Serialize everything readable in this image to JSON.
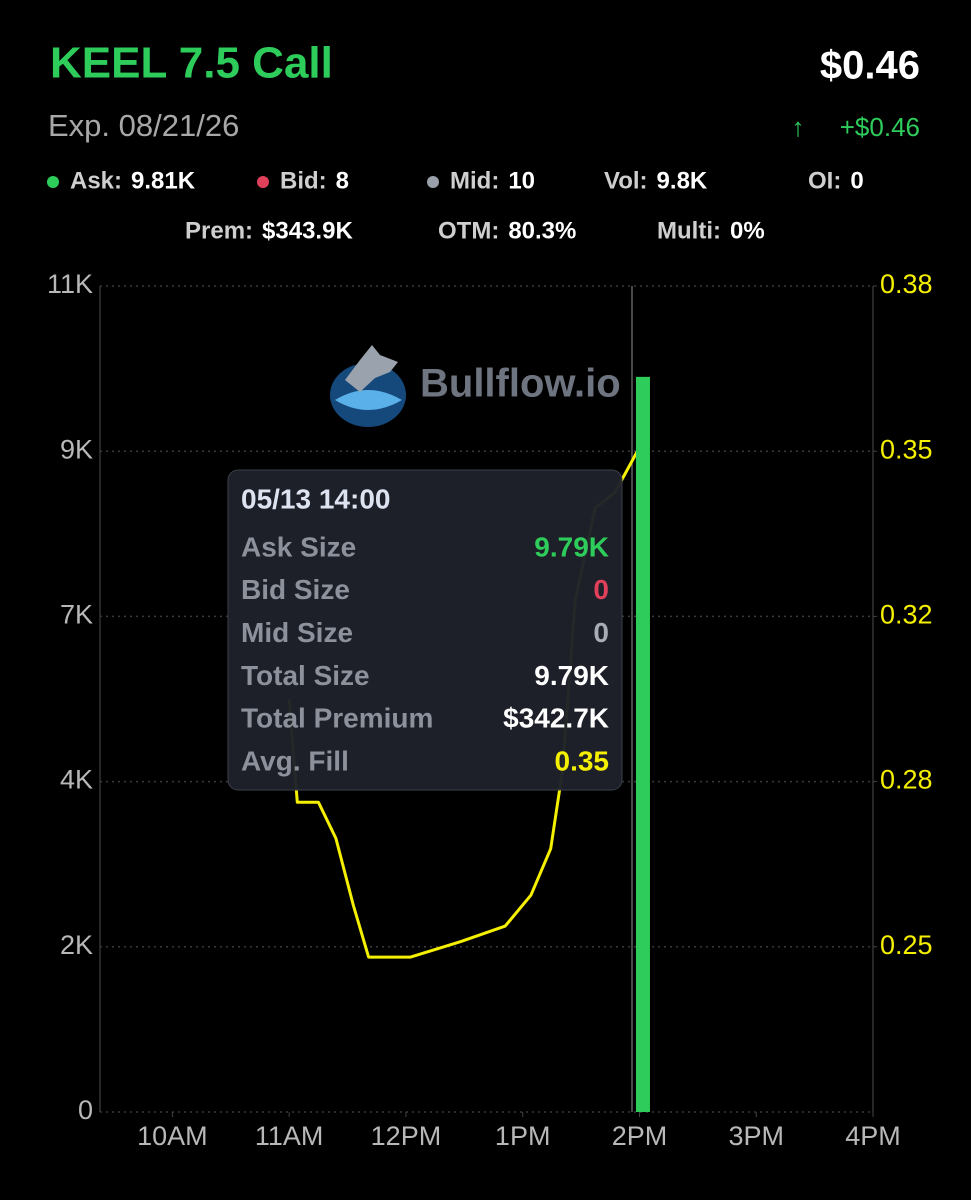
{
  "header": {
    "title": "KEEL 7.5 Call",
    "price": "$0.46",
    "expiry": "Exp. 08/21/26",
    "change": "+$0.46"
  },
  "stats": [
    {
      "label": "Ask:",
      "value": "9.81K"
    },
    {
      "label": "Bid:",
      "value": "8"
    },
    {
      "label": "Mid:",
      "value": "10"
    },
    {
      "label": "Vol:",
      "value": "9.8K"
    },
    {
      "label": "OI:",
      "value": "0"
    },
    {
      "label": "Prem:",
      "value": "$343.9K"
    },
    {
      "label": "OTM:",
      "value": "80.3%"
    },
    {
      "label": "Multi:",
      "value": "0%"
    }
  ],
  "watermark": "Bullflow.io",
  "tooltip": {
    "time": "05/13 14:00",
    "rows": [
      {
        "label": "Ask Size",
        "value": "9.79K"
      },
      {
        "label": "Bid Size",
        "value": "0"
      },
      {
        "label": "Mid Size",
        "value": "0"
      },
      {
        "label": "Total Size",
        "value": "9.79K"
      },
      {
        "label": "Total Premium",
        "value": "$342.7K"
      },
      {
        "label": "Avg. Fill",
        "value": "0.35"
      }
    ]
  },
  "chart_data": {
    "type": "bar",
    "xlim": [
      9.38,
      16
    ],
    "xticks": [
      {
        "value": 10,
        "label": "10AM"
      },
      {
        "value": 11,
        "label": "11AM"
      },
      {
        "value": 12,
        "label": "12PM"
      },
      {
        "value": 13,
        "label": "1PM"
      },
      {
        "value": 14,
        "label": "2PM"
      },
      {
        "value": 15,
        "label": "3PM"
      },
      {
        "value": 16,
        "label": "4PM"
      }
    ],
    "ylim": [
      0,
      11000
    ],
    "yticks": [
      0,
      {
        "value": 2200,
        "label": "2K"
      },
      {
        "value": 4400,
        "label": "4K"
      },
      {
        "value": 6600,
        "label": "7K"
      },
      {
        "value": 8800,
        "label": "9K"
      },
      {
        "value": 11000,
        "label": "11K"
      }
    ],
    "y2lim": [
      0.22,
      0.38
    ],
    "y2ticks": [
      {
        "value": 0.252,
        "label": "0.25"
      },
      {
        "value": 0.284,
        "label": "0.28"
      },
      {
        "value": 0.316,
        "label": "0.32"
      },
      {
        "value": 0.348,
        "label": "0.35"
      },
      0.38
    ],
    "grid": true,
    "series": [
      {
        "type": "bar",
        "color": "#2ecc5a",
        "x": [
          14.03
        ],
        "values": [
          9790
        ]
      },
      {
        "type": "line",
        "axis": "y2",
        "color": "#f5f000",
        "x": [
          11.0,
          11.07,
          11.25,
          11.4,
          11.55,
          11.68,
          12.04,
          12.47,
          12.85,
          13.07,
          13.24,
          13.34,
          13.45,
          13.62,
          13.79,
          14.03
        ],
        "values": [
          0.3,
          0.28,
          0.28,
          0.273,
          0.26,
          0.25,
          0.25,
          0.253,
          0.256,
          0.262,
          0.271,
          0.286,
          0.319,
          0.337,
          0.34,
          0.35
        ]
      }
    ]
  }
}
